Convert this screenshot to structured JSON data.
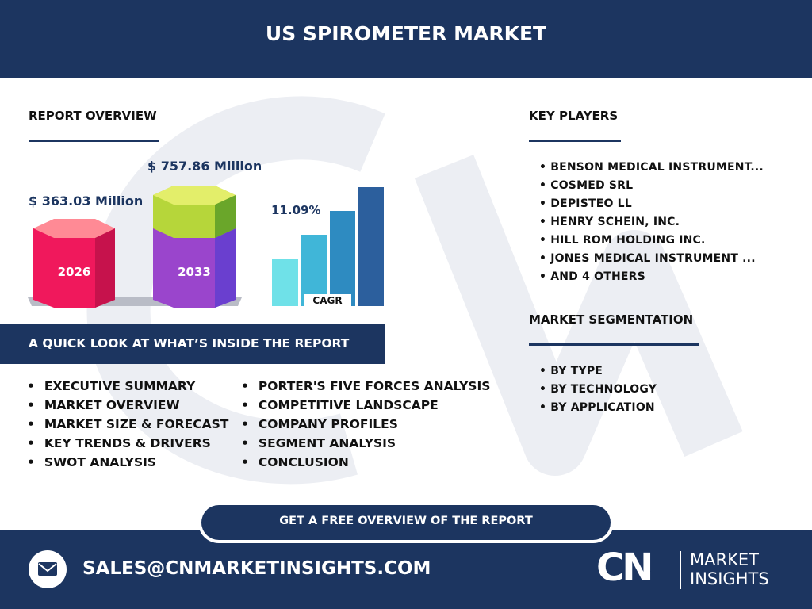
{
  "header": {
    "title": "US SPIROMETER MARKET"
  },
  "report_overview": {
    "heading": "REPORT OVERVIEW",
    "value_2026": "$ 363.03 Million",
    "year_2026": "2026",
    "value_2033": "$ 757.86 Million",
    "year_2033": "2033",
    "cagr": "11.09%",
    "cagr_label": "CAGR"
  },
  "quick_look": {
    "heading": "A QUICK LOOK AT WHAT’S INSIDE THE REPORT",
    "items": [
      "EXECUTIVE SUMMARY",
      "MARKET OVERVIEW",
      "MARKET SIZE & FORECAST",
      "KEY TRENDS & DRIVERS",
      "SWOT ANALYSIS",
      "PORTER'S FIVE FORCES ANALYSIS",
      "COMPETITIVE LANDSCAPE",
      "COMPANY PROFILES",
      "SEGMENT ANALYSIS",
      "CONCLUSION"
    ]
  },
  "key_players": {
    "heading": "KEY PLAYERS",
    "items": [
      "BENSON MEDICAL INSTRUMENT...",
      "COSMED SRL",
      "DEPISTEO LL",
      "HENRY SCHEIN, INC.",
      "HILL ROM HOLDING INC.",
      "JONES MEDICAL INSTRUMENT ...",
      "AND 4 OTHERS"
    ]
  },
  "segmentation": {
    "heading": "MARKET SEGMENTATION",
    "items": [
      "BY TYPE",
      "BY TECHNOLOGY",
      "BY APPLICATION"
    ]
  },
  "cta": "GET A FREE OVERVIEW OF THE REPORT",
  "footer": {
    "email": "SALES@CNMARKETINSIGHTS.COM",
    "logo_mark": "CN",
    "logo_line1": "MARKET",
    "logo_line2": "INSIGHTS"
  }
}
